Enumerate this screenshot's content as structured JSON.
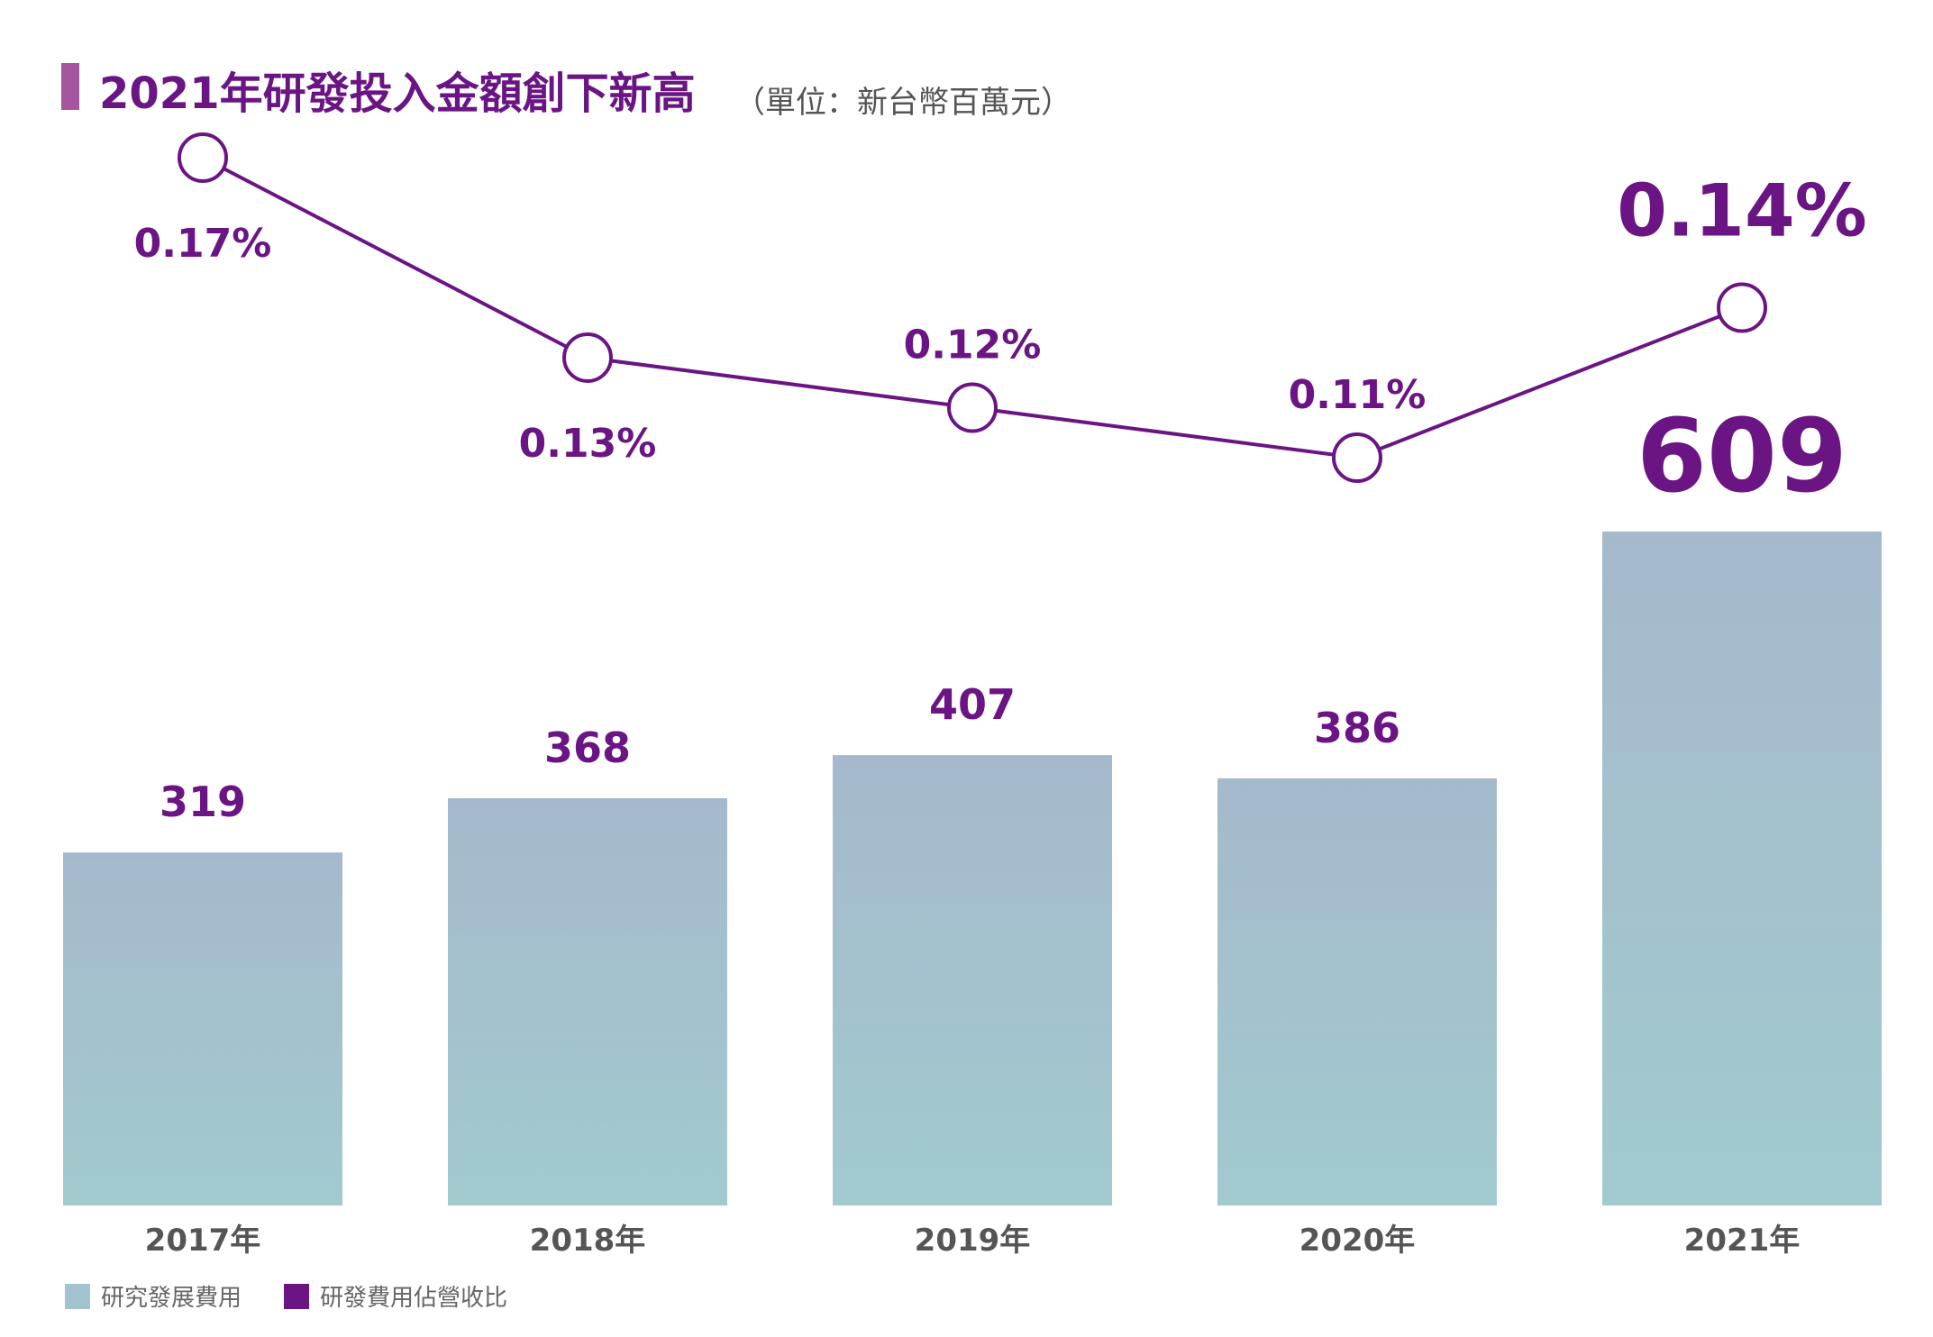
{
  "title": "2021年研發投入金額創下新高",
  "unit": "（單位：新台幣百萬元）",
  "colors": {
    "title": "#6a1583",
    "bar_top": "#a5b9cc",
    "bar_bottom": "#a1cacf",
    "line": "#6a1583",
    "axis_label": "#555555",
    "legend_bar": "#a3c3cf",
    "legend_line": "#6a1583"
  },
  "chart_data": {
    "type": "bar+line",
    "categories": [
      "2017年",
      "2018年",
      "2019年",
      "2020年",
      "2021年"
    ],
    "series": [
      {
        "name": "研究發展費用",
        "type": "bar",
        "values": [
          319,
          368,
          407,
          386,
          609
        ],
        "labels": [
          "319",
          "368",
          "407",
          "386",
          "609"
        ]
      },
      {
        "name": "研發費用佔營收比",
        "type": "line",
        "values": [
          0.17,
          0.13,
          0.12,
          0.11,
          0.14
        ],
        "labels": [
          "0.17%",
          "0.13%",
          "0.12%",
          "0.11%",
          "0.14%"
        ]
      }
    ],
    "highlight_index": 4,
    "legend_position": "bottom-left"
  }
}
